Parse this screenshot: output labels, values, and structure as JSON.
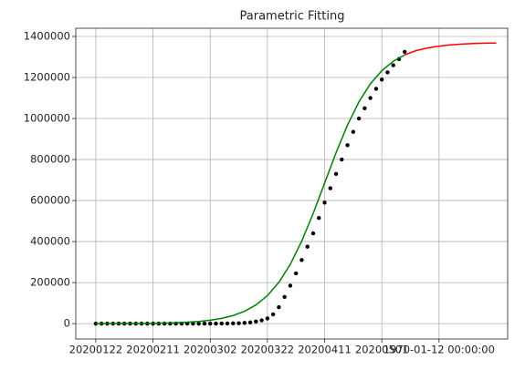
{
  "chart_data": {
    "type": "line",
    "title": "Parametric Fitting",
    "xlim": [
      -7,
      144
    ],
    "ylim": [
      -75000,
      1440000
    ],
    "xticks": [
      {
        "value": 0,
        "label": "20200122"
      },
      {
        "value": 20,
        "label": "20200211"
      },
      {
        "value": 40,
        "label": "20200302"
      },
      {
        "value": 60,
        "label": "20200322"
      },
      {
        "value": 80,
        "label": "20200411"
      },
      {
        "value": 100,
        "label": "20200501"
      },
      {
        "value": 120,
        "label": "1970-01-12 00:00:00"
      }
    ],
    "yticks": [
      0,
      200000,
      400000,
      600000,
      800000,
      1000000,
      1200000,
      1400000
    ],
    "grid": true,
    "series": [
      {
        "kind": "scatter",
        "color": "#000000",
        "x": [
          0,
          2,
          4,
          6,
          8,
          10,
          12,
          14,
          16,
          18,
          20,
          22,
          24,
          26,
          28,
          30,
          32,
          34,
          36,
          38,
          40,
          42,
          44,
          46,
          48,
          50,
          52,
          54,
          56,
          58,
          60,
          62,
          64,
          66,
          68,
          70,
          72,
          74,
          76,
          78,
          80,
          82,
          84,
          86,
          88,
          90,
          92,
          94,
          96,
          98,
          100,
          102,
          104,
          106,
          108
        ],
        "values": [
          0,
          0,
          0,
          0,
          0,
          0,
          0,
          0,
          0,
          0,
          0,
          0,
          0,
          0,
          0,
          0,
          0,
          0,
          0,
          100,
          200,
          400,
          700,
          1000,
          1500,
          2000,
          3500,
          6000,
          10000,
          16000,
          25000,
          45000,
          80000,
          130000,
          185000,
          245000,
          310000,
          375000,
          440000,
          515000,
          590000,
          660000,
          730000,
          800000,
          870000,
          935000,
          1000000,
          1050000,
          1100000,
          1145000,
          1190000,
          1225000,
          1260000,
          1290000,
          1325000
        ]
      },
      {
        "kind": "line",
        "color": "#008000",
        "x": [
          0,
          4,
          8,
          12,
          16,
          20,
          24,
          28,
          32,
          36,
          40,
          44,
          48,
          52,
          56,
          60,
          64,
          68,
          72,
          76,
          80,
          84,
          88,
          92,
          96,
          100,
          104,
          108
        ],
        "values": [
          206,
          320,
          498,
          773,
          1199,
          1860,
          2890,
          4480,
          6950,
          10740,
          16600,
          25600,
          39400,
          60100,
          91300,
          136600,
          201000,
          289000,
          402000,
          537000,
          685000,
          833000,
          968000,
          1081000,
          1169000,
          1233000,
          1279000,
          1310000
        ]
      },
      {
        "kind": "line",
        "color": "#ff0000",
        "x": [
          108,
          112,
          116,
          120,
          124,
          128,
          132,
          136,
          140
        ],
        "values": [
          1310000,
          1331000,
          1344000,
          1353000,
          1359000,
          1363000,
          1365500,
          1367000,
          1368000
        ]
      }
    ]
  }
}
